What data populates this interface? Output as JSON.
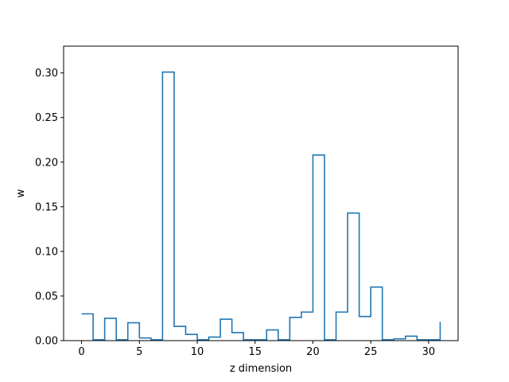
{
  "chart_data": {
    "type": "line",
    "style": "step-post",
    "title": "",
    "xlabel": "z dimension",
    "ylabel": "w",
    "xlim": [
      -1.55,
      32.55
    ],
    "ylim": [
      0,
      0.33
    ],
    "xticks": [
      0,
      5,
      10,
      15,
      20,
      25,
      30
    ],
    "yticks": [
      0.0,
      0.05,
      0.1,
      0.15,
      0.2,
      0.25,
      0.3
    ],
    "ytick_format": "2",
    "grid": false,
    "legend": "none",
    "series": [
      {
        "color": "#1f77b4",
        "x": [
          0,
          1,
          2,
          3,
          4,
          5,
          6,
          7,
          8,
          9,
          10,
          11,
          12,
          13,
          14,
          15,
          16,
          17,
          18,
          19,
          20,
          21,
          22,
          23,
          24,
          25,
          26,
          27,
          28,
          29,
          30,
          31
        ],
        "values": [
          0.03,
          0.001,
          0.025,
          0.001,
          0.02,
          0.003,
          0.001,
          0.301,
          0.016,
          0.007,
          0.001,
          0.004,
          0.024,
          0.009,
          0.001,
          0.001,
          0.012,
          0.001,
          0.026,
          0.032,
          0.208,
          0.001,
          0.032,
          0.143,
          0.027,
          0.06,
          0.001,
          0.002,
          0.005,
          0.001,
          0.001,
          0.021
        ]
      }
    ]
  }
}
